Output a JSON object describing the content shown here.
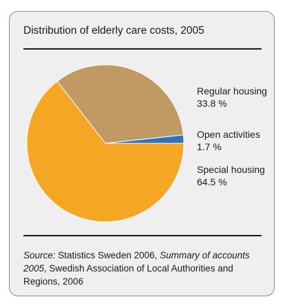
{
  "chart_data": {
    "type": "pie",
    "title": "Distribution of elderly care costs, 2005",
    "series": [
      {
        "name": "Regular housing",
        "value": 33.8,
        "value_label": "33.8 %",
        "color": "#c09a62"
      },
      {
        "name": "Open activities",
        "value": 1.7,
        "value_label": "1.7 %",
        "color": "#2f73b8"
      },
      {
        "name": "Special housing",
        "value": 64.5,
        "value_label": "64.5 %",
        "color": "#f5a623"
      }
    ],
    "legend_placement": "right"
  },
  "source": {
    "prefix": "Source:",
    "part1": " Statistics Sweden 2006, ",
    "italic": "Summary of accounts 2005",
    "part2": ", Swedish Association of Local Authorities and Regions, 2006"
  }
}
